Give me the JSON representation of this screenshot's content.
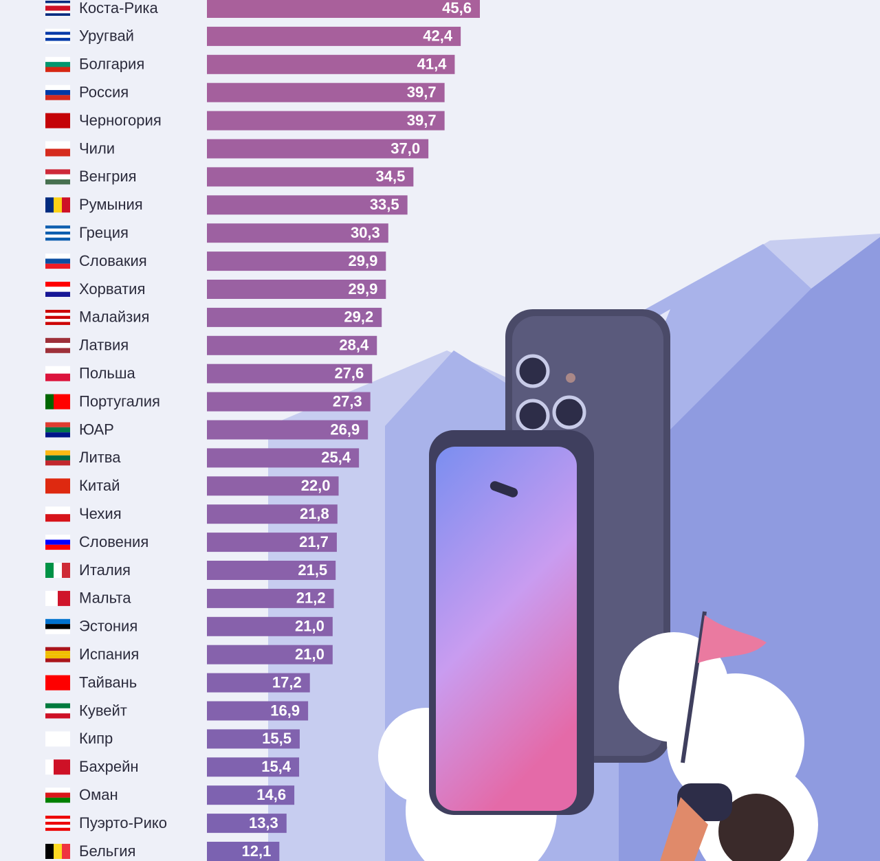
{
  "chart_data": {
    "type": "bar",
    "orientation": "horizontal",
    "categories": [
      "Коста-Рика",
      "Уругвай",
      "Болгария",
      "Россия",
      "Черногория",
      "Чили",
      "Венгрия",
      "Румыния",
      "Греция",
      "Словакия",
      "Хорватия",
      "Малайзия",
      "Латвия",
      "Польша",
      "Португалия",
      "ЮАР",
      "Литва",
      "Китай",
      "Чехия",
      "Словения",
      "Италия",
      "Мальта",
      "Эстония",
      "Испания",
      "Тайвань",
      "Кувейт",
      "Кипр",
      "Бахрейн",
      "Оман",
      "Пуэрто-Рико",
      "Бельгия"
    ],
    "values": [
      45.6,
      42.4,
      41.4,
      39.7,
      39.7,
      37.0,
      34.5,
      33.5,
      30.3,
      29.9,
      29.9,
      29.2,
      28.4,
      27.6,
      27.3,
      26.9,
      25.4,
      22.0,
      21.8,
      21.7,
      21.5,
      21.2,
      21.0,
      21.0,
      17.2,
      16.9,
      15.5,
      15.4,
      14.6,
      13.3,
      12.1
    ],
    "value_labels": [
      "45,6",
      "42,4",
      "41,4",
      "39,7",
      "39,7",
      "37,0",
      "34,5",
      "33,5",
      "30,3",
      "29,9",
      "29,9",
      "29,2",
      "28,4",
      "27,6",
      "27,3",
      "26,9",
      "25,4",
      "22,0",
      "21,8",
      "21,7",
      "21,5",
      "21,2",
      "21,0",
      "21,0",
      "17,2",
      "16,9",
      "15,5",
      "15,4",
      "14,6",
      "13,3",
      "12,1"
    ],
    "gradient": [
      "#a9609b",
      "#7b62b1"
    ]
  }
}
